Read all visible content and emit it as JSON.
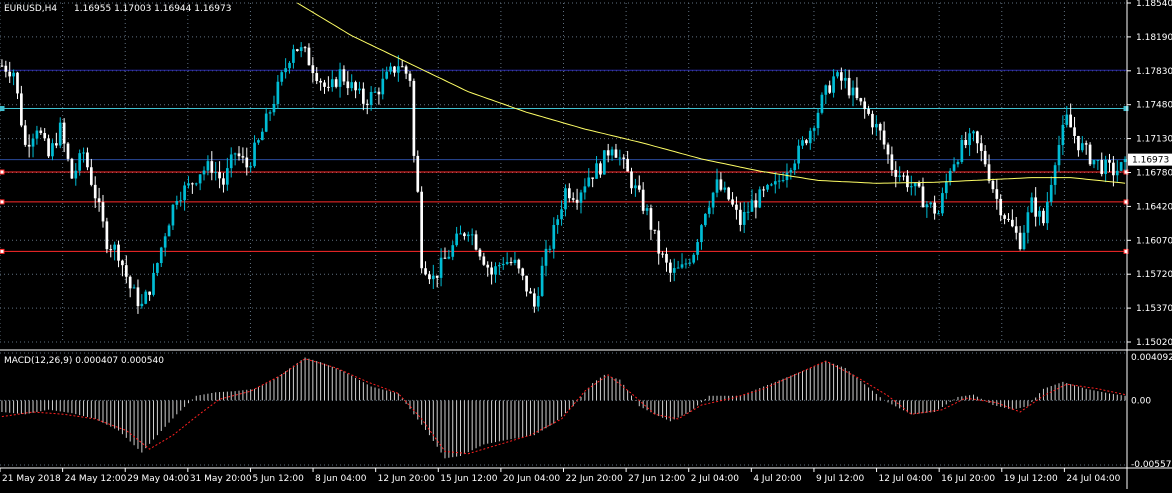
{
  "header": {
    "symbol": "EURUSD,H4",
    "ohlc": "1.16955 1.17003 1.16944 1.16973"
  },
  "macd_label": "MACD(12,26,9) 0.000407 0.000540",
  "current_price_label": "1.16973",
  "colors": {
    "background": "#000000",
    "bull_candle": "#00bcd4",
    "bear_candle": "#ffffff",
    "ma_line": "#ffff66",
    "grid": "#607080",
    "h_blue": "#2a2aa8",
    "h_cyan": "#40c0d0",
    "h_red": "#ff2a2a",
    "macd_hist": "#d0d0d0",
    "macd_signal": "#ff2020"
  },
  "chart_data": [
    {
      "type": "candlestick",
      "ylim": [
        1.1502,
        1.1865
      ],
      "y_ticks": [
        "1.18540",
        "1.18190",
        "1.17830",
        "1.17480",
        "1.17130",
        "1.16780",
        "1.16420",
        "1.16070",
        "1.15720",
        "1.15370",
        "1.15020"
      ],
      "x_ticks": [
        "21 May 2018",
        "24 May 12:00",
        "29 May 04:00",
        "31 May 20:00",
        "5 Jun 12:00",
        "8 Jun 04:00",
        "12 Jun 20:00",
        "15 Jun 12:00",
        "20 Jun 04:00",
        "22 Jun 20:00",
        "27 Jun 12:00",
        "2 Jul 04:00",
        "4 Jul 20:00",
        "9 Jul 12:00",
        "12 Jul 04:00",
        "16 Jul 20:00",
        "19 Jul 12:00",
        "24 Jul 04:00"
      ],
      "horizontal_lines": [
        {
          "value": 1.1793,
          "color": "#2a2aa8"
        },
        {
          "value": 1.1752,
          "color": "#40c0d0"
        },
        {
          "value": 1.16973,
          "color": "#2a4a9a"
        },
        {
          "value": 1.1684,
          "color": "#ff2a2a"
        },
        {
          "value": 1.1652,
          "color": "#ff2a2a"
        },
        {
          "value": 1.1599,
          "color": "#ff2a2a"
        }
      ],
      "close_path": [
        [
          0,
          1.1798
        ],
        [
          3,
          1.1792
        ],
        [
          6,
          1.1712
        ],
        [
          9,
          1.1734
        ],
        [
          12,
          1.17
        ],
        [
          15,
          1.173
        ],
        [
          18,
          1.1678
        ],
        [
          21,
          1.1705
        ],
        [
          24,
          1.166
        ],
        [
          27,
          1.161
        ],
        [
          30,
          1.1598
        ],
        [
          33,
          1.156
        ],
        [
          36,
          1.154
        ],
        [
          39,
          1.157
        ],
        [
          42,
          1.162
        ],
        [
          45,
          1.166
        ],
        [
          48,
          1.1668
        ],
        [
          51,
          1.1685
        ],
        [
          54,
          1.169
        ],
        [
          57,
          1.1672
        ],
        [
          60,
          1.1705
        ],
        [
          63,
          1.169
        ],
        [
          66,
          1.1715
        ],
        [
          69,
          1.175
        ],
        [
          72,
          1.1785
        ],
        [
          75,
          1.182
        ],
        [
          78,
          1.181
        ],
        [
          81,
          1.179
        ],
        [
          84,
          1.1768
        ],
        [
          87,
          1.179
        ],
        [
          90,
          1.1775
        ],
        [
          93,
          1.176
        ],
        [
          96,
          1.1768
        ],
        [
          99,
          1.1785
        ],
        [
          102,
          1.18
        ],
        [
          105,
          1.1785
        ],
        [
          106,
          1.17
        ],
        [
          107,
          1.166
        ],
        [
          108,
          1.159
        ],
        [
          111,
          1.157
        ],
        [
          114,
          1.159
        ],
        [
          117,
          1.161
        ],
        [
          120,
          1.1625
        ],
        [
          123,
          1.16
        ],
        [
          126,
          1.1575
        ],
        [
          129,
          1.159
        ],
        [
          132,
          1.1585
        ],
        [
          135,
          1.156
        ],
        [
          137,
          1.154
        ],
        [
          139,
          1.158
        ],
        [
          142,
          1.162
        ],
        [
          145,
          1.1665
        ],
        [
          148,
          1.166
        ],
        [
          151,
          1.168
        ],
        [
          154,
          1.169
        ],
        [
          157,
          1.1715
        ],
        [
          160,
          1.169
        ],
        [
          163,
          1.1665
        ],
        [
          166,
          1.164
        ],
        [
          169,
          1.16
        ],
        [
          172,
          1.1575
        ],
        [
          175,
          1.158
        ],
        [
          178,
          1.16
        ],
        [
          181,
          1.1645
        ],
        [
          184,
          1.167
        ],
        [
          187,
          1.1655
        ],
        [
          190,
          1.163
        ],
        [
          193,
          1.165
        ],
        [
          196,
          1.166
        ],
        [
          199,
          1.1668
        ],
        [
          202,
          1.169
        ],
        [
          205,
          1.1705
        ],
        [
          208,
          1.173
        ],
        [
          211,
          1.176
        ],
        [
          214,
          1.1785
        ],
        [
          217,
          1.178
        ],
        [
          220,
          1.176
        ],
        [
          223,
          1.1745
        ],
        [
          226,
          1.1725
        ],
        [
          229,
          1.169
        ],
        [
          232,
          1.1678
        ],
        [
          235,
          1.1665
        ],
        [
          238,
          1.165
        ],
        [
          241,
          1.164
        ],
        [
          244,
          1.169
        ],
        [
          247,
          1.171
        ],
        [
          250,
          1.172
        ],
        [
          253,
          1.1695
        ],
        [
          256,
          1.1655
        ],
        [
          259,
          1.163
        ],
        [
          262,
          1.161
        ],
        [
          265,
          1.165
        ],
        [
          268,
          1.163
        ],
        [
          271,
          1.17
        ],
        [
          274,
          1.174
        ],
        [
          277,
          1.1715
        ],
        [
          280,
          1.17
        ],
        [
          283,
          1.169
        ],
        [
          286,
          1.1685
        ],
        [
          289,
          1.169
        ]
      ],
      "ma_path": [
        [
          76,
          1.1865
        ],
        [
          90,
          1.183
        ],
        [
          105,
          1.18
        ],
        [
          120,
          1.177
        ],
        [
          135,
          1.1748
        ],
        [
          150,
          1.173
        ],
        [
          165,
          1.1715
        ],
        [
          180,
          1.1698
        ],
        [
          195,
          1.1685
        ],
        [
          210,
          1.1675
        ],
        [
          225,
          1.1672
        ],
        [
          240,
          1.1673
        ],
        [
          255,
          1.1676
        ],
        [
          265,
          1.1678
        ],
        [
          275,
          1.1678
        ],
        [
          289,
          1.1672
        ]
      ]
    },
    {
      "type": "bar",
      "title": "MACD(12,26,9)",
      "ylim": [
        -0.005576,
        0.004092
      ],
      "y_ticks": [
        "0.004092",
        "0.00",
        "-0.005576"
      ],
      "histogram_path": [
        [
          0,
          -0.001
        ],
        [
          6,
          -0.0012
        ],
        [
          12,
          -0.0008
        ],
        [
          18,
          -0.0011
        ],
        [
          24,
          -0.0016
        ],
        [
          30,
          -0.0026
        ],
        [
          36,
          -0.0045
        ],
        [
          40,
          -0.003
        ],
        [
          45,
          -0.0012
        ],
        [
          50,
          0.0004
        ],
        [
          55,
          0.0007
        ],
        [
          60,
          0.0008
        ],
        [
          65,
          0.001
        ],
        [
          70,
          0.0018
        ],
        [
          75,
          0.003
        ],
        [
          78,
          0.0037
        ],
        [
          82,
          0.0033
        ],
        [
          88,
          0.0025
        ],
        [
          95,
          0.0012
        ],
        [
          102,
          0.0006
        ],
        [
          106,
          -0.0012
        ],
        [
          110,
          -0.003
        ],
        [
          114,
          -0.005
        ],
        [
          118,
          -0.0048
        ],
        [
          124,
          -0.0038
        ],
        [
          130,
          -0.0034
        ],
        [
          137,
          -0.003
        ],
        [
          142,
          -0.002
        ],
        [
          147,
          -0.0005
        ],
        [
          152,
          0.0015
        ],
        [
          155,
          0.0022
        ],
        [
          159,
          0.0018
        ],
        [
          164,
          -0.0005
        ],
        [
          168,
          -0.0012
        ],
        [
          172,
          -0.0018
        ],
        [
          177,
          -0.001
        ],
        [
          182,
          0.0004
        ],
        [
          190,
          0.0004
        ],
        [
          196,
          0.0012
        ],
        [
          202,
          0.002
        ],
        [
          208,
          0.0028
        ],
        [
          212,
          0.0034
        ],
        [
          217,
          0.0028
        ],
        [
          222,
          0.0014
        ],
        [
          227,
          0.0
        ],
        [
          234,
          -0.0012
        ],
        [
          240,
          -0.001
        ],
        [
          246,
          0.0003
        ],
        [
          250,
          0.0005
        ],
        [
          255,
          -0.0004
        ],
        [
          260,
          -0.0008
        ],
        [
          264,
          -0.0005
        ],
        [
          268,
          0.001
        ],
        [
          273,
          0.0016
        ],
        [
          279,
          0.001
        ],
        [
          285,
          0.0006
        ],
        [
          289,
          0.0004
        ]
      ],
      "signal_path": [
        [
          0,
          -0.0014
        ],
        [
          8,
          -0.001
        ],
        [
          16,
          -0.0012
        ],
        [
          24,
          -0.0016
        ],
        [
          32,
          -0.0026
        ],
        [
          38,
          -0.0042
        ],
        [
          44,
          -0.003
        ],
        [
          50,
          -0.0014
        ],
        [
          56,
          0.0001
        ],
        [
          64,
          0.0008
        ],
        [
          72,
          0.0022
        ],
        [
          78,
          0.0036
        ],
        [
          86,
          0.0028
        ],
        [
          94,
          0.0016
        ],
        [
          102,
          0.0006
        ],
        [
          108,
          -0.0016
        ],
        [
          114,
          -0.0044
        ],
        [
          120,
          -0.0046
        ],
        [
          128,
          -0.0038
        ],
        [
          136,
          -0.003
        ],
        [
          144,
          -0.0016
        ],
        [
          150,
          0.0008
        ],
        [
          156,
          0.0022
        ],
        [
          162,
          0.0006
        ],
        [
          168,
          -0.0012
        ],
        [
          174,
          -0.0016
        ],
        [
          180,
          -0.0004
        ],
        [
          188,
          0.0002
        ],
        [
          196,
          0.001
        ],
        [
          204,
          0.0022
        ],
        [
          212,
          0.0034
        ],
        [
          220,
          0.002
        ],
        [
          228,
          0.0004
        ],
        [
          234,
          -0.0012
        ],
        [
          242,
          -0.0008
        ],
        [
          248,
          0.0002
        ],
        [
          256,
          -0.0002
        ],
        [
          262,
          -0.001
        ],
        [
          268,
          0.0004
        ],
        [
          274,
          0.0014
        ],
        [
          282,
          0.001
        ],
        [
          289,
          0.0005
        ]
      ]
    }
  ]
}
